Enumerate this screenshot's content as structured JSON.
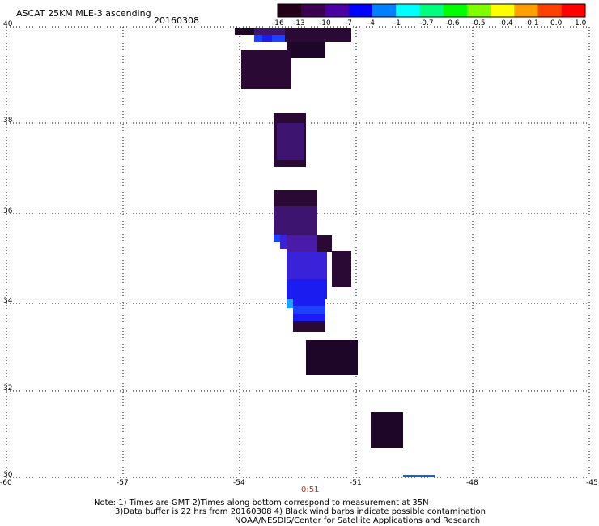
{
  "header": {
    "title": "ASCAT 25KM MLE-3 ascending",
    "date": "20160308"
  },
  "colorbar": {
    "ticks": [
      "-16",
      "-13",
      "-10",
      "-7",
      "-4",
      "-1",
      "-0.7",
      "-0.6",
      "-0.5",
      "-0.4",
      "-0.1",
      "0.0",
      "1.0"
    ],
    "colors": [
      "#230015",
      "#3c0050",
      "#4b00a0",
      "#0000ff",
      "#0080ff",
      "#00ffff",
      "#00ff80",
      "#00ff00",
      "#80ff00",
      "#ffff00",
      "#ffa000",
      "#ff4000",
      "#ff0000"
    ]
  },
  "axes": {
    "lat_labels": [
      "40",
      "38",
      "36",
      "34",
      "32",
      "30"
    ],
    "lon_labels": [
      "-60",
      "-57",
      "-54",
      "-51",
      "-48",
      "-45"
    ],
    "lat_range": [
      30,
      40
    ],
    "lon_range": [
      -60,
      -45
    ],
    "grid": "dotted"
  },
  "time_label": "0:51",
  "notes": [
    "Note: 1) Times are GMT 2)Times along bottom correspond to measurement at 35N",
    "3)Data buffer is 22 hrs from 20160308 4) Black wind barbs indicate possible contamination",
    "NOAA/NESDIS/Center for Satellite Applications and Research"
  ],
  "swath_colors": {
    "dark": "#2a0a35",
    "darker": "#1e0628",
    "purple": "#3d1470",
    "violet": "#4a1aa8",
    "blue_violet": "#3a22d8",
    "blue": "#1b1cf0",
    "bright_blue": "#1e40ff",
    "light_blue": "#20a0ff",
    "track_line": "#1060e0",
    "time_color": "#ff2000"
  }
}
